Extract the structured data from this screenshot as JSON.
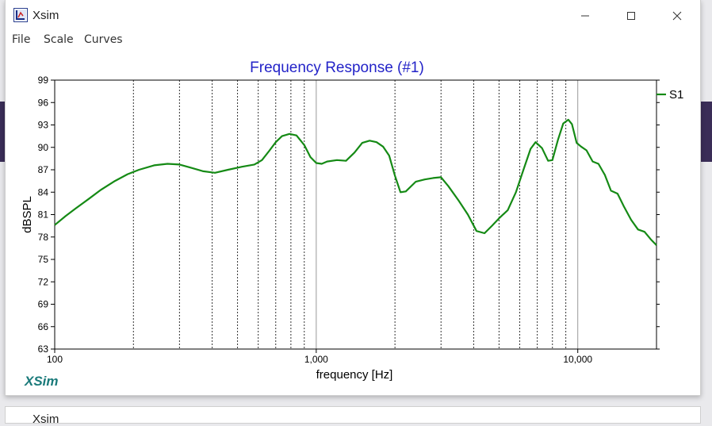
{
  "window": {
    "title": "Xsim",
    "icon": "xsim-app-icon",
    "controls": [
      "minimize-icon",
      "maximize-icon",
      "close-icon"
    ]
  },
  "menu": [
    "File",
    "Scale",
    "Curves"
  ],
  "branding": "XSim",
  "bottom_window": {
    "title": "Xsim"
  },
  "colors": {
    "title": "#2323c8",
    "curve": "#158a15",
    "branding": "#1a7a7a"
  },
  "chart_data": {
    "type": "line",
    "title": "Frequency Response (#1)",
    "xlabel": "frequency [Hz]",
    "ylabel": "dBSPL",
    "xscale": "log",
    "xlim": [
      100,
      20000
    ],
    "ylim": [
      63,
      99
    ],
    "xticks": [
      {
        "value": 100,
        "label": "100"
      },
      {
        "value": 1000,
        "label": "1,000"
      },
      {
        "value": 10000,
        "label": "10,000"
      }
    ],
    "yticks": [
      63,
      66,
      69,
      72,
      75,
      78,
      81,
      84,
      87,
      90,
      93,
      96,
      99
    ],
    "grid": true,
    "legend": "right",
    "series": [
      {
        "name": "S1",
        "x": [
          100,
          110,
          120,
          135,
          150,
          170,
          190,
          210,
          240,
          270,
          300,
          330,
          370,
          410,
          460,
          520,
          580,
          620,
          660,
          700,
          740,
          790,
          840,
          900,
          950,
          1000,
          1050,
          1100,
          1200,
          1300,
          1400,
          1500,
          1600,
          1700,
          1800,
          1900,
          2000,
          2100,
          2200,
          2400,
          2600,
          2800,
          3000,
          3200,
          3500,
          3800,
          4100,
          4400,
          4700,
          5000,
          5400,
          5800,
          6200,
          6600,
          6900,
          7300,
          7700,
          8000,
          8400,
          8800,
          9200,
          9500,
          9900,
          10300,
          10800,
          11400,
          12000,
          12700,
          13400,
          14200,
          15000,
          16000,
          17000,
          18000,
          19000,
          20000
        ],
        "y": [
          79.6,
          80.8,
          81.8,
          83.1,
          84.3,
          85.5,
          86.4,
          87.0,
          87.6,
          87.8,
          87.7,
          87.3,
          86.8,
          86.6,
          87.0,
          87.4,
          87.7,
          88.3,
          89.5,
          90.7,
          91.5,
          91.8,
          91.6,
          90.3,
          88.7,
          87.9,
          87.8,
          88.1,
          88.3,
          88.2,
          89.3,
          90.6,
          90.9,
          90.7,
          90.1,
          88.9,
          86.2,
          84.0,
          84.1,
          85.4,
          85.7,
          85.9,
          86.0,
          84.8,
          82.9,
          81.0,
          78.8,
          78.5,
          79.5,
          80.5,
          81.6,
          84.0,
          87.0,
          89.8,
          90.7,
          89.9,
          88.2,
          88.3,
          91.0,
          93.2,
          93.7,
          93.1,
          90.6,
          90.1,
          89.6,
          88.1,
          87.8,
          86.3,
          84.2,
          83.8,
          82.1,
          80.3,
          79.0,
          78.7,
          77.7,
          76.9
        ]
      }
    ]
  }
}
